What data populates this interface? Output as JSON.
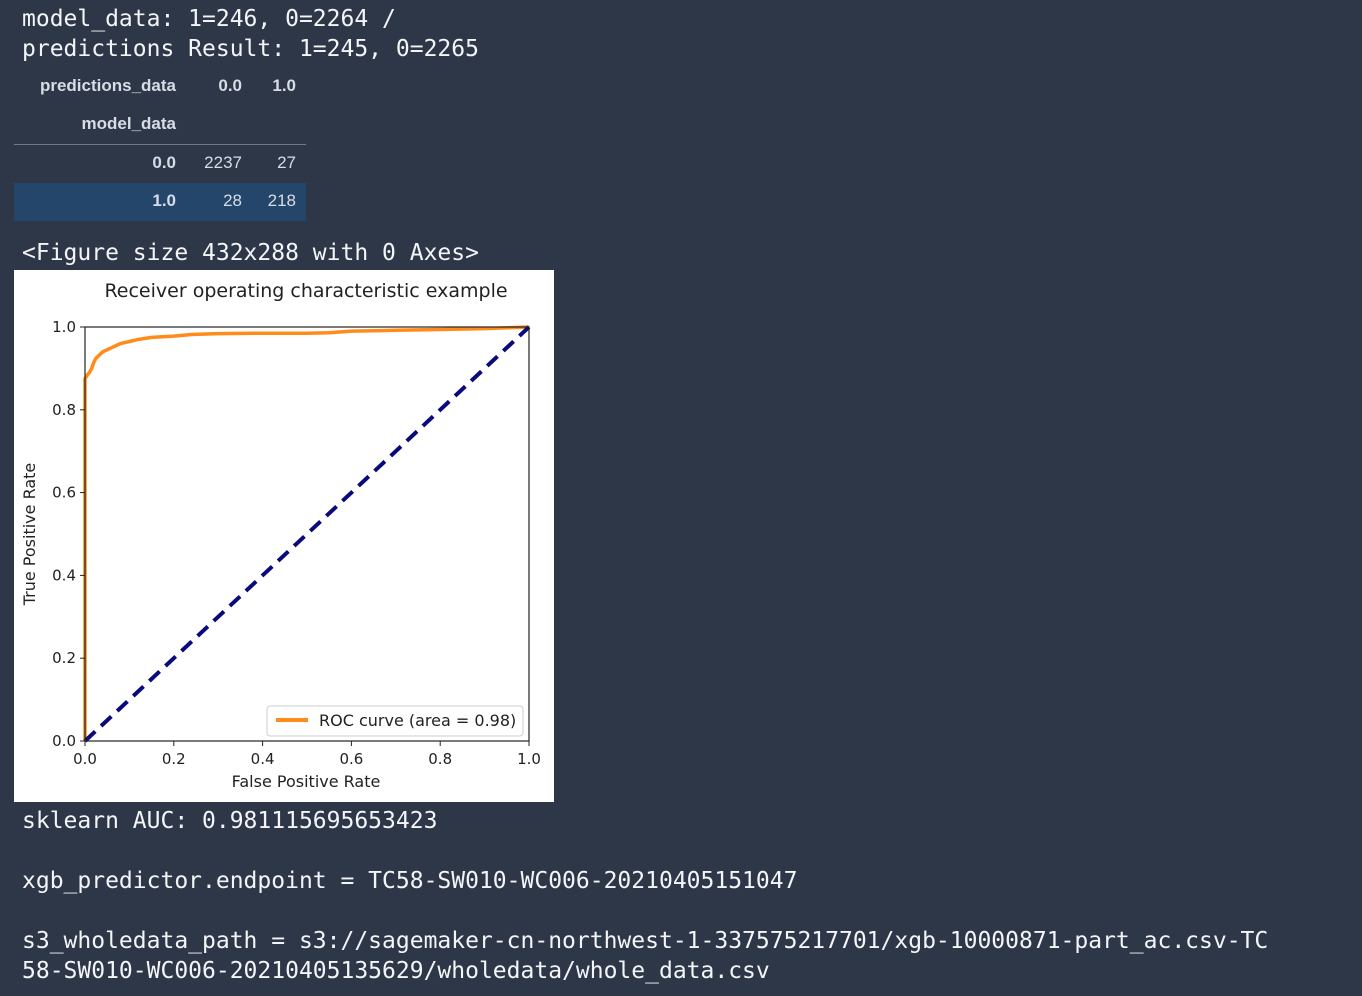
{
  "output": {
    "line1": "model_data: 1=246, 0=2264 /",
    "line2": "predictions Result: 1=245, 0=2265",
    "figure_size_text": "<Figure size 432x288 with 0 Axes>",
    "auc_text": "sklearn AUC: 0.981115695653423",
    "endpoint_text": "xgb_predictor.endpoint = TC58-SW010-WC006-20210405151047",
    "path_line1": "s3_wholedata_path = s3://sagemaker-cn-northwest-1-337575217701/xgb-10000871-part_ac.csv-TC",
    "path_line2": "58-SW010-WC006-20210405135629/wholedata/whole_data.csv"
  },
  "crosstab": {
    "columns_name": "predictions_data",
    "col_0": "0.0",
    "col_1": "1.0",
    "index_name": "model_data",
    "rows": [
      {
        "label": "0.0",
        "v0": "2237",
        "v1": "27"
      },
      {
        "label": "1.0",
        "v0": "28",
        "v1": "218"
      }
    ]
  },
  "chart_data": {
    "type": "line",
    "title": "Receiver operating characteristic example",
    "xlabel": "False Positive Rate",
    "ylabel": "True Positive Rate",
    "xlim": [
      0.0,
      1.0
    ],
    "ylim": [
      0.0,
      1.0
    ],
    "xticks": [
      "0.0",
      "0.2",
      "0.4",
      "0.6",
      "0.8",
      "1.0"
    ],
    "yticks": [
      "0.0",
      "0.2",
      "0.4",
      "0.6",
      "0.8",
      "1.0"
    ],
    "legend_position": "lower-right",
    "grid": false,
    "series": [
      {
        "name": "ROC curve (area = 0.98)",
        "color": "#ff8c1a",
        "style": "solid",
        "x": [
          0.0,
          0.0,
          0.003,
          0.006,
          0.01,
          0.015,
          0.02,
          0.025,
          0.03,
          0.04,
          0.05,
          0.06,
          0.07,
          0.08,
          0.1,
          0.12,
          0.15,
          0.2,
          0.24,
          0.3,
          0.4,
          0.5,
          0.55,
          0.6,
          0.7,
          0.8,
          0.9,
          1.0
        ],
        "y": [
          0.0,
          0.875,
          0.88,
          0.885,
          0.89,
          0.9,
          0.915,
          0.925,
          0.93,
          0.94,
          0.945,
          0.95,
          0.955,
          0.96,
          0.965,
          0.97,
          0.975,
          0.978,
          0.982,
          0.984,
          0.985,
          0.985,
          0.986,
          0.99,
          0.992,
          0.994,
          0.996,
          1.0
        ]
      },
      {
        "name": "",
        "color": "#0a0a7a",
        "style": "dashed",
        "x": [
          0.0,
          1.0
        ],
        "y": [
          0.0,
          1.0
        ]
      }
    ]
  }
}
